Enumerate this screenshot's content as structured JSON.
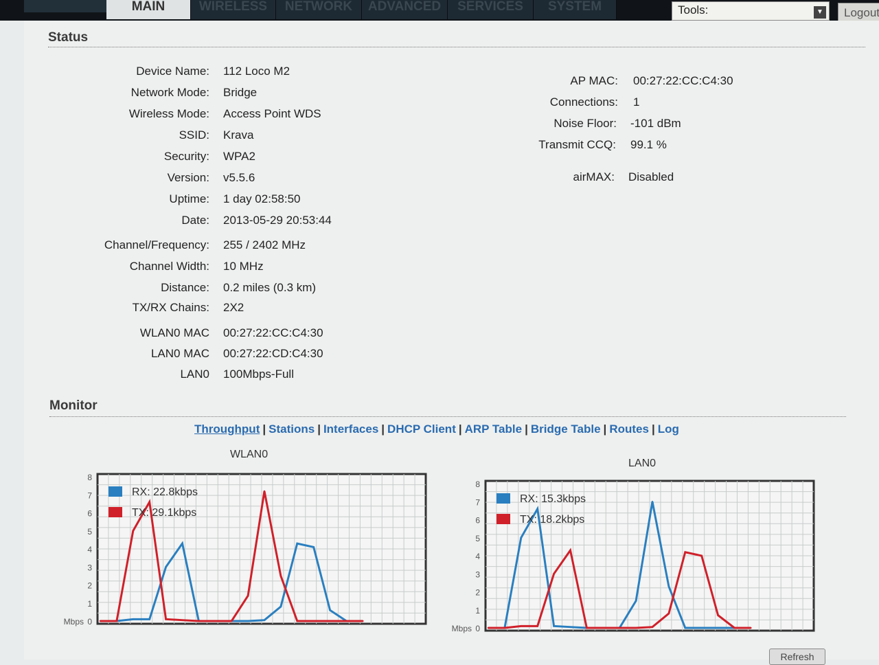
{
  "nav": {
    "tabs": [
      {
        "label": "MAIN",
        "active": true
      },
      {
        "label": "WIRELESS"
      },
      {
        "label": "NETWORK"
      },
      {
        "label": "ADVANCED"
      },
      {
        "label": "SERVICES"
      },
      {
        "label": "SYSTEM"
      }
    ],
    "tools_label": "Tools:",
    "logout_label": "Logout"
  },
  "status": {
    "title": "Status",
    "left": [
      {
        "label": "Device Name:",
        "value": "112 Loco M2"
      },
      {
        "label": "Network Mode:",
        "value": "Bridge"
      },
      {
        "label": "Wireless Mode:",
        "value": "Access Point WDS"
      },
      {
        "label": "SSID:",
        "value": "Krava"
      },
      {
        "label": "Security:",
        "value": "WPA2"
      },
      {
        "label": "Version:",
        "value": "v5.5.6"
      },
      {
        "label": "Uptime:",
        "value": "1 day 02:58:50"
      },
      {
        "label": "Date:",
        "value": "2013-05-29 20:53:44"
      },
      {
        "label": "Channel/Frequency:",
        "value": "255 / 2402 MHz"
      },
      {
        "label": "Channel Width:",
        "value": "10 MHz"
      },
      {
        "label": "Distance:",
        "value": "0.2 miles (0.3 km)"
      },
      {
        "label": "TX/RX Chains:",
        "value": "2X2"
      },
      {
        "label": "WLAN0 MAC",
        "value": "00:27:22:CC:C4:30"
      },
      {
        "label": "LAN0 MAC",
        "value": "00:27:22:CD:C4:30"
      },
      {
        "label": "LAN0",
        "value": "100Mbps-Full"
      }
    ],
    "right": [
      {
        "label": "AP MAC:",
        "value": "00:27:22:CC:C4:30"
      },
      {
        "label": "Connections:",
        "value": "1"
      },
      {
        "label": "Noise Floor:",
        "value": "-101 dBm"
      },
      {
        "label": "Transmit CCQ:",
        "value": "99.1 %"
      },
      {
        "label": "airMAX:",
        "value": "Disabled"
      }
    ]
  },
  "monitor": {
    "title": "Monitor",
    "links": [
      "Throughput",
      "Stations",
      "Interfaces",
      "DHCP Client",
      "ARP Table",
      "Bridge Table",
      "Routes",
      "Log"
    ],
    "active_link": "Throughput",
    "refresh_label": "Refresh"
  },
  "colors": {
    "rx": "#2a7fc0",
    "tx": "#d0202a",
    "link": "#2a6bb0"
  },
  "chart_data": [
    {
      "type": "line",
      "title": "WLAN0",
      "ylabel": "Mbps",
      "ylim": [
        0,
        8
      ],
      "yticks": [
        "0",
        "1",
        "2",
        "3",
        "4",
        "5",
        "6",
        "7",
        "8"
      ],
      "grid": true,
      "legend": "top-left",
      "series": [
        {
          "name": "RX: 22.8kbps",
          "color": "#2a7fc0",
          "values": [
            0,
            0,
            0.1,
            0.1,
            3,
            4.3,
            0,
            0,
            0,
            0,
            0.05,
            0.8,
            4.3,
            4.1,
            0.6,
            0,
            null
          ]
        },
        {
          "name": "TX: 29.1kbps",
          "color": "#d0202a",
          "values": [
            0,
            0,
            5,
            6.6,
            0.1,
            0.05,
            0,
            0,
            0,
            1.4,
            7.2,
            2.5,
            0,
            0,
            0,
            0,
            0
          ]
        }
      ]
    },
    {
      "type": "line",
      "title": "LAN0",
      "ylabel": "Mbps",
      "ylim": [
        0,
        8
      ],
      "yticks": [
        "0",
        "1",
        "2",
        "3",
        "4",
        "5",
        "6",
        "7",
        "8"
      ],
      "grid": true,
      "legend": "top-left",
      "series": [
        {
          "name": "RX: 15.3kbps",
          "color": "#2a7fc0",
          "values": [
            0,
            0,
            5,
            6.6,
            0.1,
            0.05,
            0,
            0,
            0,
            1.5,
            7,
            2.3,
            0,
            0,
            0,
            0,
            null
          ]
        },
        {
          "name": "TX: 18.2kbps",
          "color": "#d0202a",
          "values": [
            0,
            0,
            0.1,
            0.1,
            3,
            4.3,
            0,
            0,
            0,
            0,
            0.05,
            0.8,
            4.2,
            4,
            0.7,
            0,
            0
          ]
        }
      ]
    }
  ]
}
